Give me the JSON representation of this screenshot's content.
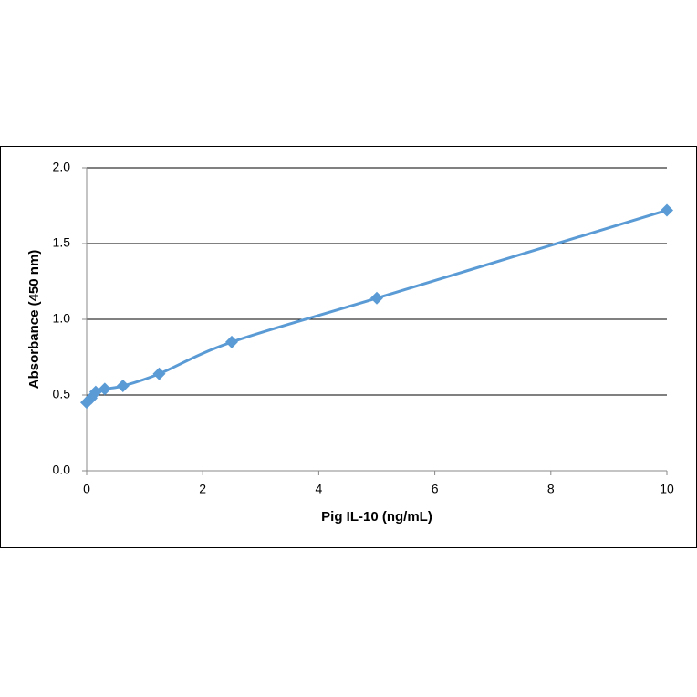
{
  "chart_data": {
    "type": "line",
    "x_label": "Pig IL-10 (ng/mL)",
    "y_label": "Absorbance  (450 nm)",
    "series": [
      {
        "name": "Pig IL-10",
        "color": "#5b9bd5",
        "x": [
          0,
          0.078,
          0.156,
          0.3125,
          0.625,
          1.25,
          2.5,
          5,
          10
        ],
        "values": [
          0.45,
          0.48,
          0.52,
          0.54,
          0.56,
          0.64,
          0.85,
          1.14,
          1.72
        ]
      }
    ],
    "xlim": [
      0,
      10
    ],
    "xticks": [
      0,
      2,
      4,
      6,
      8,
      10
    ],
    "ylim": [
      0,
      2
    ],
    "yticks": [
      {
        "value": 0,
        "label": "0.0"
      },
      {
        "value": 0.5,
        "label": "0.5"
      },
      {
        "value": 1,
        "label": "1.0"
      },
      {
        "value": 1.5,
        "label": "1.5"
      },
      {
        "value": 2,
        "label": "2.0"
      }
    ],
    "grid": true
  }
}
